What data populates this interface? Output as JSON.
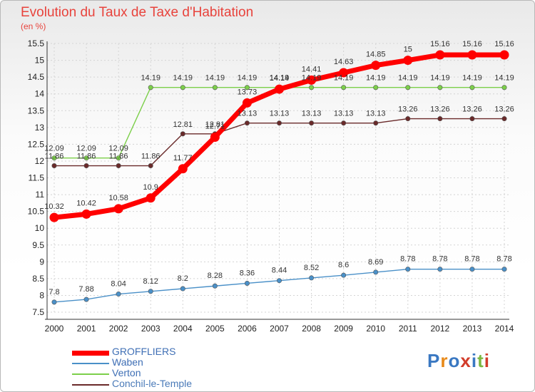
{
  "chart_data": {
    "type": "line",
    "title": "Evolution du Taux de Taxe d'Habitation",
    "subtitle": "(en %)",
    "x": [
      "2000",
      "2001",
      "2002",
      "2003",
      "2004",
      "2005",
      "2006",
      "2007",
      "2008",
      "2009",
      "2010",
      "2011",
      "2012",
      "2013",
      "2014"
    ],
    "y_ticks": [
      "7.5",
      "8",
      "8.5",
      "9",
      "9.5",
      "10",
      "10.5",
      "11",
      "11.5",
      "12",
      "12.5",
      "13",
      "13.5",
      "14",
      "14.5",
      "15",
      "15.5"
    ],
    "ylim": [
      7.5,
      15.5
    ],
    "grid": "both",
    "legend_position": "bottom-left",
    "series": [
      {
        "name": "GROFFLIERS",
        "color": "#ff0000",
        "values": [
          10.32,
          10.42,
          10.58,
          10.9,
          11.77,
          12.71,
          13.73,
          14.14,
          14.41,
          14.63,
          14.85,
          15,
          15.16,
          15.16,
          15.16
        ],
        "labels": [
          "10.32",
          "10.42",
          "10.58",
          "10.9",
          "11.77",
          "12.71",
          "13.73",
          "14.14",
          "14.41",
          "14.63",
          "14.85",
          "15",
          "15.16",
          "15.16",
          "15.16"
        ]
      },
      {
        "name": "Waben",
        "color": "#4a90c8",
        "values": [
          7.8,
          7.88,
          8.04,
          8.12,
          8.2,
          8.28,
          8.36,
          8.44,
          8.52,
          8.6,
          8.69,
          8.78,
          8.78,
          8.78,
          8.78
        ],
        "labels": [
          "7.8",
          "7.88",
          "8.04",
          "8.12",
          "8.2",
          "8.28",
          "8.36",
          "8.44",
          "8.52",
          "8.6",
          "8.69",
          "8.78",
          "8.78",
          "8.78",
          "8.78"
        ]
      },
      {
        "name": "Verton",
        "color": "#7ccf4a",
        "values": [
          12.09,
          12.09,
          12.09,
          14.19,
          14.19,
          14.19,
          14.19,
          14.19,
          14.19,
          14.19,
          14.19,
          14.19,
          14.19,
          14.19,
          14.19
        ],
        "labels": [
          "12.09",
          "12.09",
          "12.09",
          "14.19",
          "14.19",
          "14.19",
          "14.19",
          "14.19",
          "14.19",
          "14.19",
          "14.19",
          "14.19",
          "14.19",
          "14.19",
          "14.19"
        ]
      },
      {
        "name": "Conchil-le-Temple",
        "color": "#6a2a2a",
        "values": [
          11.86,
          11.86,
          11.86,
          11.86,
          12.81,
          12.81,
          13.13,
          13.13,
          13.13,
          13.13,
          13.13,
          13.26,
          13.26,
          13.26,
          13.26
        ],
        "labels": [
          "11.86",
          "11.86",
          "11.86",
          "11.86",
          "12.81",
          "12.81",
          "13.13",
          "13.13",
          "13.13",
          "13.13",
          "13.13",
          "13.26",
          "13.26",
          "13.26",
          "13.26"
        ]
      }
    ]
  },
  "logo_text": "Proxiti"
}
